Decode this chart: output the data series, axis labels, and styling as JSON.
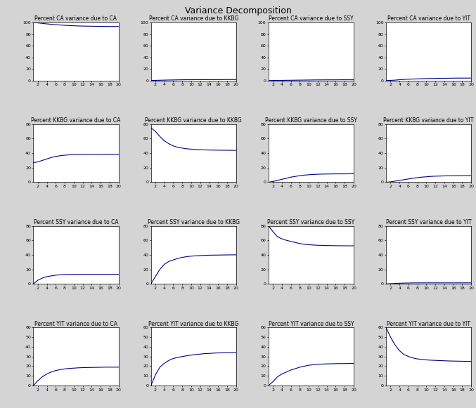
{
  "title": "Variance Decomposition",
  "variables": [
    "CA",
    "KKBG",
    "SSY",
    "YIT"
  ],
  "n_periods": 20,
  "background_color": "#d4d4d4",
  "plot_bg_color": "#ffffff",
  "line_color": "#00008B",
  "title_fontsize": 9,
  "subtitle_fontsize": 5.5,
  "tick_fontsize": 4.5,
  "curves": {
    "CA_CA": [
      100,
      99.2,
      98.4,
      97.5,
      96.8,
      96.2,
      95.6,
      95.1,
      94.7,
      94.3,
      94.0,
      93.8,
      93.6,
      93.5,
      93.4,
      93.3,
      93.2,
      93.1,
      93.1,
      93.0
    ],
    "CA_KKBG": [
      0,
      0.3,
      0.5,
      0.7,
      0.9,
      1.0,
      1.2,
      1.3,
      1.4,
      1.4,
      1.5,
      1.5,
      1.5,
      1.6,
      1.6,
      1.6,
      1.6,
      1.7,
      1.7,
      1.7
    ],
    "CA_SSY": [
      0,
      0.1,
      0.2,
      0.3,
      0.4,
      0.5,
      0.6,
      0.7,
      0.8,
      0.9,
      1.0,
      1.1,
      1.1,
      1.2,
      1.2,
      1.2,
      1.3,
      1.3,
      1.3,
      1.3
    ],
    "CA_YIT": [
      0,
      0.3,
      0.7,
      1.4,
      1.9,
      2.3,
      2.6,
      2.9,
      3.1,
      3.4,
      3.5,
      3.6,
      3.8,
      3.9,
      4.0,
      4.1,
      4.2,
      4.2,
      4.2,
      4.2
    ],
    "KKBG_CA": [
      27,
      28,
      30,
      32,
      34,
      35.5,
      36.5,
      37.2,
      37.7,
      37.9,
      38.1,
      38.2,
      38.3,
      38.4,
      38.4,
      38.5,
      38.5,
      38.6,
      38.6,
      38.6
    ],
    "KKBG_KKBG": [
      75,
      70,
      63,
      57,
      53,
      50,
      48,
      47,
      46,
      45.5,
      45,
      44.8,
      44.5,
      44.3,
      44.2,
      44.1,
      44.0,
      44.0,
      43.9,
      43.9
    ],
    "KKBG_SSY": [
      0,
      1,
      2.5,
      4,
      5.5,
      7,
      8,
      9,
      9.8,
      10.3,
      10.7,
      11.0,
      11.2,
      11.3,
      11.4,
      11.5,
      11.5,
      11.5,
      11.6,
      11.6
    ],
    "KKBG_YIT": [
      0,
      0.5,
      1.5,
      2.5,
      3.5,
      4.5,
      5.5,
      6.3,
      7.0,
      7.5,
      8.0,
      8.3,
      8.5,
      8.7,
      8.8,
      8.9,
      9.0,
      9.0,
      9.1,
      9.1
    ],
    "SSY_CA": [
      0,
      5,
      8,
      10,
      11,
      12,
      12.5,
      12.8,
      13.0,
      13.1,
      13.2,
      13.2,
      13.2,
      13.2,
      13.2,
      13.2,
      13.2,
      13.2,
      13.2,
      13.2
    ],
    "SSY_KKBG": [
      0,
      10,
      20,
      27,
      31,
      33,
      35,
      36.5,
      37.5,
      38.2,
      38.7,
      39.0,
      39.2,
      39.5,
      39.6,
      39.7,
      39.8,
      39.9,
      40.0,
      40.0
    ],
    "SSY_SSY": [
      80,
      72,
      65,
      62,
      60,
      58.5,
      57,
      55.5,
      54.5,
      54.0,
      53.5,
      53.2,
      53.0,
      52.8,
      52.7,
      52.6,
      52.5,
      52.5,
      52.4,
      52.4
    ],
    "SSY_YIT": [
      0,
      0.3,
      0.6,
      0.9,
      1.1,
      1.2,
      1.3,
      1.4,
      1.4,
      1.4,
      1.4,
      1.4,
      1.4,
      1.4,
      1.4,
      1.4,
      1.4,
      1.4,
      1.4,
      1.4
    ],
    "YIT_CA": [
      0,
      5,
      9,
      12,
      14,
      15.5,
      16.5,
      17.2,
      17.7,
      18.0,
      18.3,
      18.5,
      18.6,
      18.7,
      18.8,
      18.9,
      19.0,
      19.0,
      19.0,
      19.0
    ],
    "YIT_KKBG": [
      0,
      11,
      19,
      23,
      26,
      28,
      29,
      30,
      30.8,
      31.5,
      32.0,
      32.5,
      33.0,
      33.2,
      33.5,
      33.7,
      33.8,
      33.9,
      34.0,
      34.0
    ],
    "YIT_SSY": [
      0,
      4,
      9,
      12,
      14,
      16,
      17.5,
      19,
      20,
      21,
      21.5,
      22.0,
      22.2,
      22.4,
      22.5,
      22.6,
      22.7,
      22.7,
      22.8,
      22.8
    ],
    "YIT_YIT": [
      60,
      50,
      42,
      36,
      32,
      30,
      28.5,
      27.5,
      27,
      26.5,
      26.2,
      26.0,
      25.8,
      25.6,
      25.4,
      25.3,
      25.2,
      25.1,
      25.0,
      25.0
    ]
  },
  "ylims": {
    "CA_CA": [
      0,
      100
    ],
    "CA_KKBG": [
      0,
      100
    ],
    "CA_SSY": [
      0,
      100
    ],
    "CA_YIT": [
      0,
      100
    ],
    "KKBG_CA": [
      0,
      80
    ],
    "KKBG_KKBG": [
      0,
      80
    ],
    "KKBG_SSY": [
      0,
      80
    ],
    "KKBG_YIT": [
      0,
      80
    ],
    "SSY_CA": [
      0,
      80
    ],
    "SSY_KKBG": [
      0,
      80
    ],
    "SSY_SSY": [
      0,
      80
    ],
    "SSY_YIT": [
      0,
      80
    ],
    "YIT_CA": [
      0,
      60
    ],
    "YIT_KKBG": [
      0,
      60
    ],
    "YIT_SSY": [
      0,
      60
    ],
    "YIT_YIT": [
      0,
      60
    ]
  },
  "yticks": {
    "CA_CA": [
      0,
      20,
      40,
      60,
      80,
      100
    ],
    "CA_KKBG": [
      0,
      20,
      40,
      60,
      80,
      100
    ],
    "CA_SSY": [
      0,
      20,
      40,
      60,
      80,
      100
    ],
    "CA_YIT": [
      0,
      20,
      40,
      60,
      80,
      100
    ],
    "KKBG_CA": [
      0,
      20,
      40,
      60,
      80
    ],
    "KKBG_KKBG": [
      0,
      20,
      40,
      60,
      80
    ],
    "KKBG_SSY": [
      0,
      20,
      40,
      60,
      80
    ],
    "KKBG_YIT": [
      0,
      20,
      40,
      60,
      80
    ],
    "SSY_CA": [
      0,
      20,
      40,
      60,
      80
    ],
    "SSY_KKBG": [
      0,
      20,
      40,
      60,
      80
    ],
    "SSY_SSY": [
      0,
      20,
      40,
      60,
      80
    ],
    "SSY_YIT": [
      0,
      20,
      40,
      60,
      80
    ],
    "YIT_CA": [
      0,
      10,
      20,
      30,
      40,
      50,
      60
    ],
    "YIT_KKBG": [
      0,
      10,
      20,
      30,
      40,
      50,
      60
    ],
    "YIT_SSY": [
      0,
      10,
      20,
      30,
      40,
      50,
      60
    ],
    "YIT_YIT": [
      0,
      10,
      20,
      30,
      40,
      50,
      60
    ]
  }
}
